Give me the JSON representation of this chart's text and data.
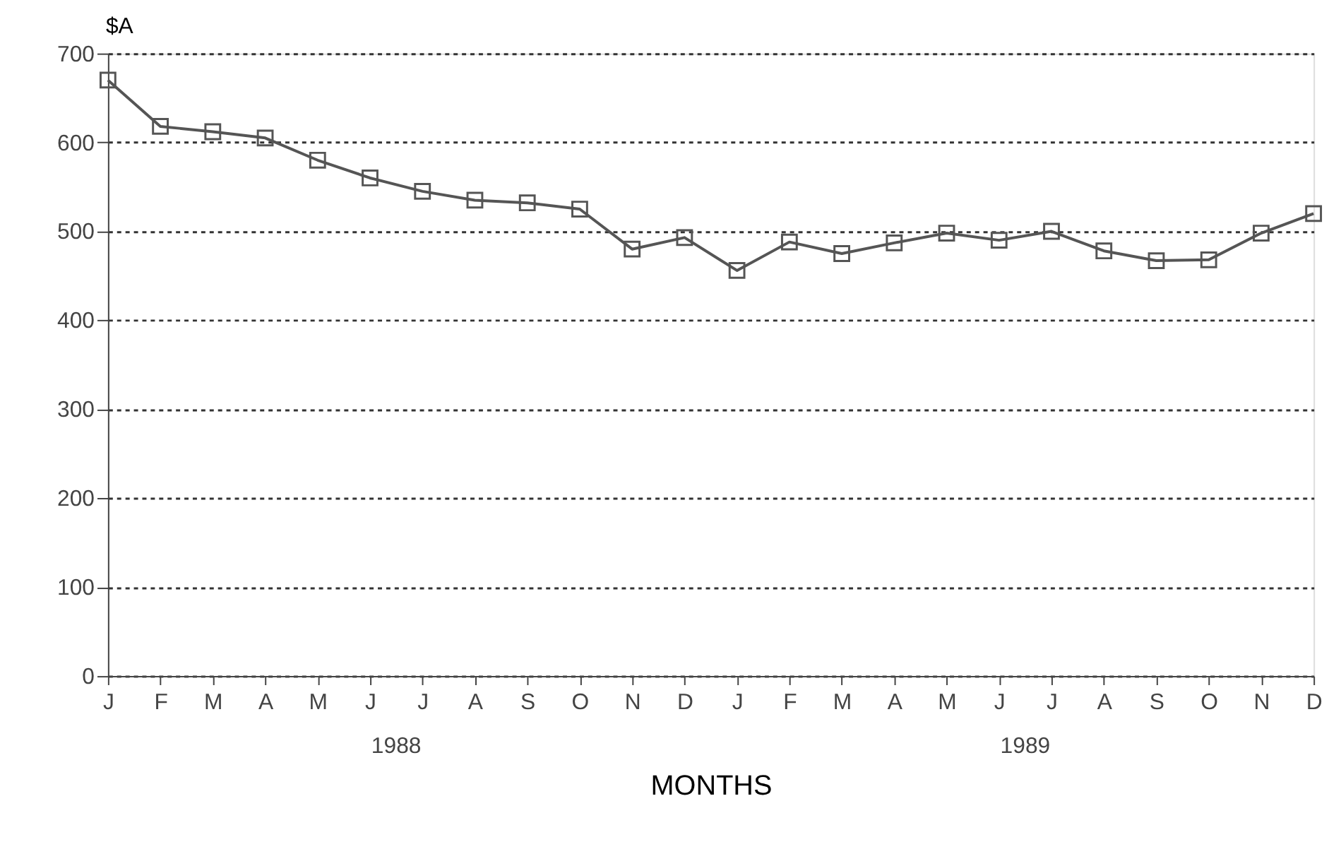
{
  "chart_data": {
    "type": "line",
    "xlabel": "MONTHS",
    "ylabel": "$A",
    "categories": [
      "J",
      "F",
      "M",
      "A",
      "M",
      "J",
      "J",
      "A",
      "S",
      "O",
      "N",
      "D",
      "J",
      "F",
      "M",
      "A",
      "M",
      "J",
      "J",
      "A",
      "S",
      "O",
      "N",
      "D"
    ],
    "series": [
      {
        "color": "#555555",
        "values": [
          670,
          618,
          612,
          605,
          580,
          560,
          545,
          535,
          532,
          525,
          480,
          493,
          456,
          488,
          475,
          487,
          498,
          490,
          500,
          478,
          467,
          468,
          498,
          520
        ]
      }
    ],
    "ylim": [
      0,
      700
    ],
    "yticks": [
      0,
      100,
      200,
      300,
      400,
      500,
      600,
      700
    ],
    "grid": "y",
    "marker": "square",
    "line_style": "solid",
    "annotations": [
      "1988",
      "1989"
    ]
  }
}
